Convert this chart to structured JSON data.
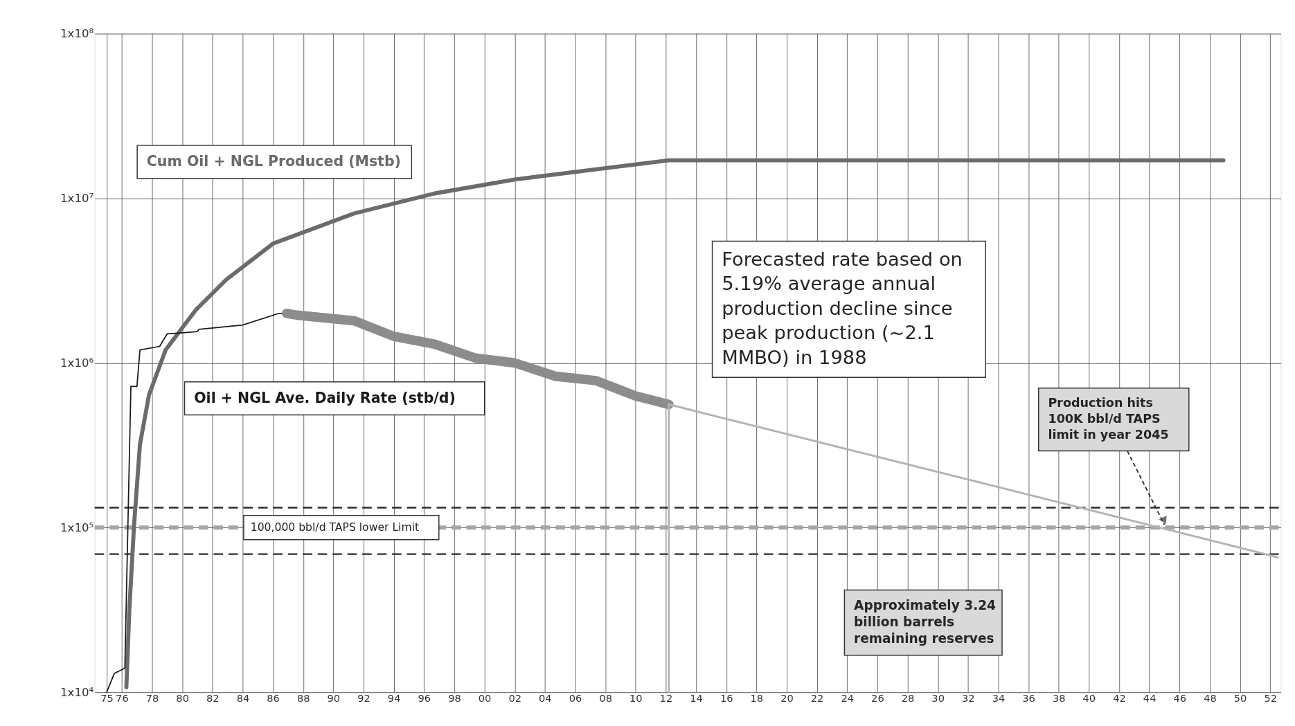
{
  "chart_data": {
    "type": "line",
    "xlim": [
      1974.2,
      2052.7
    ],
    "xticks": [
      {
        "value": 1975,
        "label": "75"
      },
      {
        "value": 1976,
        "label": "76"
      },
      {
        "value": 1978,
        "label": "78"
      },
      {
        "value": 1980,
        "label": "80"
      },
      {
        "value": 1982,
        "label": "82"
      },
      {
        "value": 1984,
        "label": "84"
      },
      {
        "value": 1986,
        "label": "86"
      },
      {
        "value": 1988,
        "label": "88"
      },
      {
        "value": 1990,
        "label": "90"
      },
      {
        "value": 1992,
        "label": "92"
      },
      {
        "value": 1994,
        "label": "94"
      },
      {
        "value": 1996,
        "label": "96"
      },
      {
        "value": 1998,
        "label": "98"
      },
      {
        "value": 2000,
        "label": "00"
      },
      {
        "value": 2002,
        "label": "02"
      },
      {
        "value": 2004,
        "label": "04"
      },
      {
        "value": 2006,
        "label": "06"
      },
      {
        "value": 2008,
        "label": "08"
      },
      {
        "value": 2010,
        "label": "10"
      },
      {
        "value": 2012,
        "label": "12"
      },
      {
        "value": 2014,
        "label": "14"
      },
      {
        "value": 2016,
        "label": "16"
      },
      {
        "value": 2018,
        "label": "18"
      },
      {
        "value": 2020,
        "label": "20"
      },
      {
        "value": 2022,
        "label": "22"
      },
      {
        "value": 2024,
        "label": "24"
      },
      {
        "value": 2026,
        "label": "26"
      },
      {
        "value": 2028,
        "label": "28"
      },
      {
        "value": 2030,
        "label": "30"
      },
      {
        "value": 2032,
        "label": "32"
      },
      {
        "value": 2034,
        "label": "34"
      },
      {
        "value": 2036,
        "label": "36"
      },
      {
        "value": 2038,
        "label": "38"
      },
      {
        "value": 2040,
        "label": "40"
      },
      {
        "value": 2042,
        "label": "42"
      },
      {
        "value": 2044,
        "label": "44"
      },
      {
        "value": 2046,
        "label": "46"
      },
      {
        "value": 2048,
        "label": "48"
      },
      {
        "value": 2050,
        "label": "50"
      },
      {
        "value": 2052,
        "label": "52"
      }
    ],
    "ylim": [
      10000,
      100000000
    ],
    "yticks": [
      {
        "value": 10000,
        "label": "1x10⁴"
      },
      {
        "value": 100000,
        "label": "1x10⁵"
      },
      {
        "value": 1000000,
        "label": "1x10⁶"
      },
      {
        "value": 10000000,
        "label": "1x10⁷"
      },
      {
        "value": 100000000,
        "label": "1x10⁸"
      }
    ],
    "log": "y",
    "grid": true,
    "marker": "none",
    "line_style": "solid",
    "series": [
      {
        "name": "Cum Oil +  NGL Produced (Mstb)",
        "color": "#6b6b6b",
        "x": [
          1976.3,
          1976.5,
          1976.8,
          1977.2,
          1977.8,
          1978.9,
          1980.9,
          1982.9,
          1986.0,
          1991.4,
          1996.7,
          2002.0,
          2007.4,
          2012.2,
          2048.9
        ],
        "values": [
          10700,
          32000,
          100000,
          320000,
          640000,
          1200000,
          2100000,
          3200000,
          5300000,
          8100000,
          10700000,
          13000000,
          15000000,
          17000000,
          17000000
        ]
      },
      {
        "name": "Oil + NGL Ave. Daily Rate (stb/d)",
        "color": "#1a1a1a",
        "x": [
          1975.0,
          1975.5,
          1976.2,
          1976.6,
          1977.0,
          1977.2,
          1978.5,
          1979.0,
          1981.0,
          1981.1,
          1984.0,
          1986.4,
          1986.9
        ],
        "values": [
          10000,
          13000,
          14000,
          720000,
          720000,
          1200000,
          1260000,
          1500000,
          1550000,
          1600000,
          1700000,
          2000000,
          2000000
        ]
      },
      {
        "color": "#8c8c8c",
        "x": [
          1986.9,
          1987.6,
          1991.4,
          1994.0,
          1996.7,
          1999.4,
          2002.0,
          2004.7,
          2007.4,
          2010.0,
          2012.2
        ],
        "values": [
          2000000,
          1950000,
          1800000,
          1450000,
          1300000,
          1070000,
          1000000,
          830000,
          780000,
          630000,
          560000
        ]
      },
      {
        "color": "#b3b3b3",
        "x": [
          2012.2,
          2012.2,
          2052.5
        ],
        "values": [
          10000,
          560000,
          66000
        ]
      }
    ],
    "ref_lines": [
      {
        "axis": "y",
        "value": 132000,
        "color": "#2b2b2b",
        "line_style": "dashed"
      },
      {
        "axis": "y",
        "value": 100000,
        "label": "100,000 bbl/d TAPS lower Limit",
        "color": "#a6a6a6",
        "line_style": "dashed"
      },
      {
        "axis": "y",
        "value": 69000,
        "color": "#2b2b2b",
        "line_style": "dashed"
      }
    ],
    "annotations": [
      "Forecasted rate based on 5.19% average annual production decline since peak production (~2.1 MMBO) in 1988",
      {
        "text": "Production  hits 100K bbl/d TAPS limit in year 2045",
        "x": 2045,
        "y": 100000
      },
      "Approximately 3.24 billion barrels remaining reserves"
    ]
  }
}
